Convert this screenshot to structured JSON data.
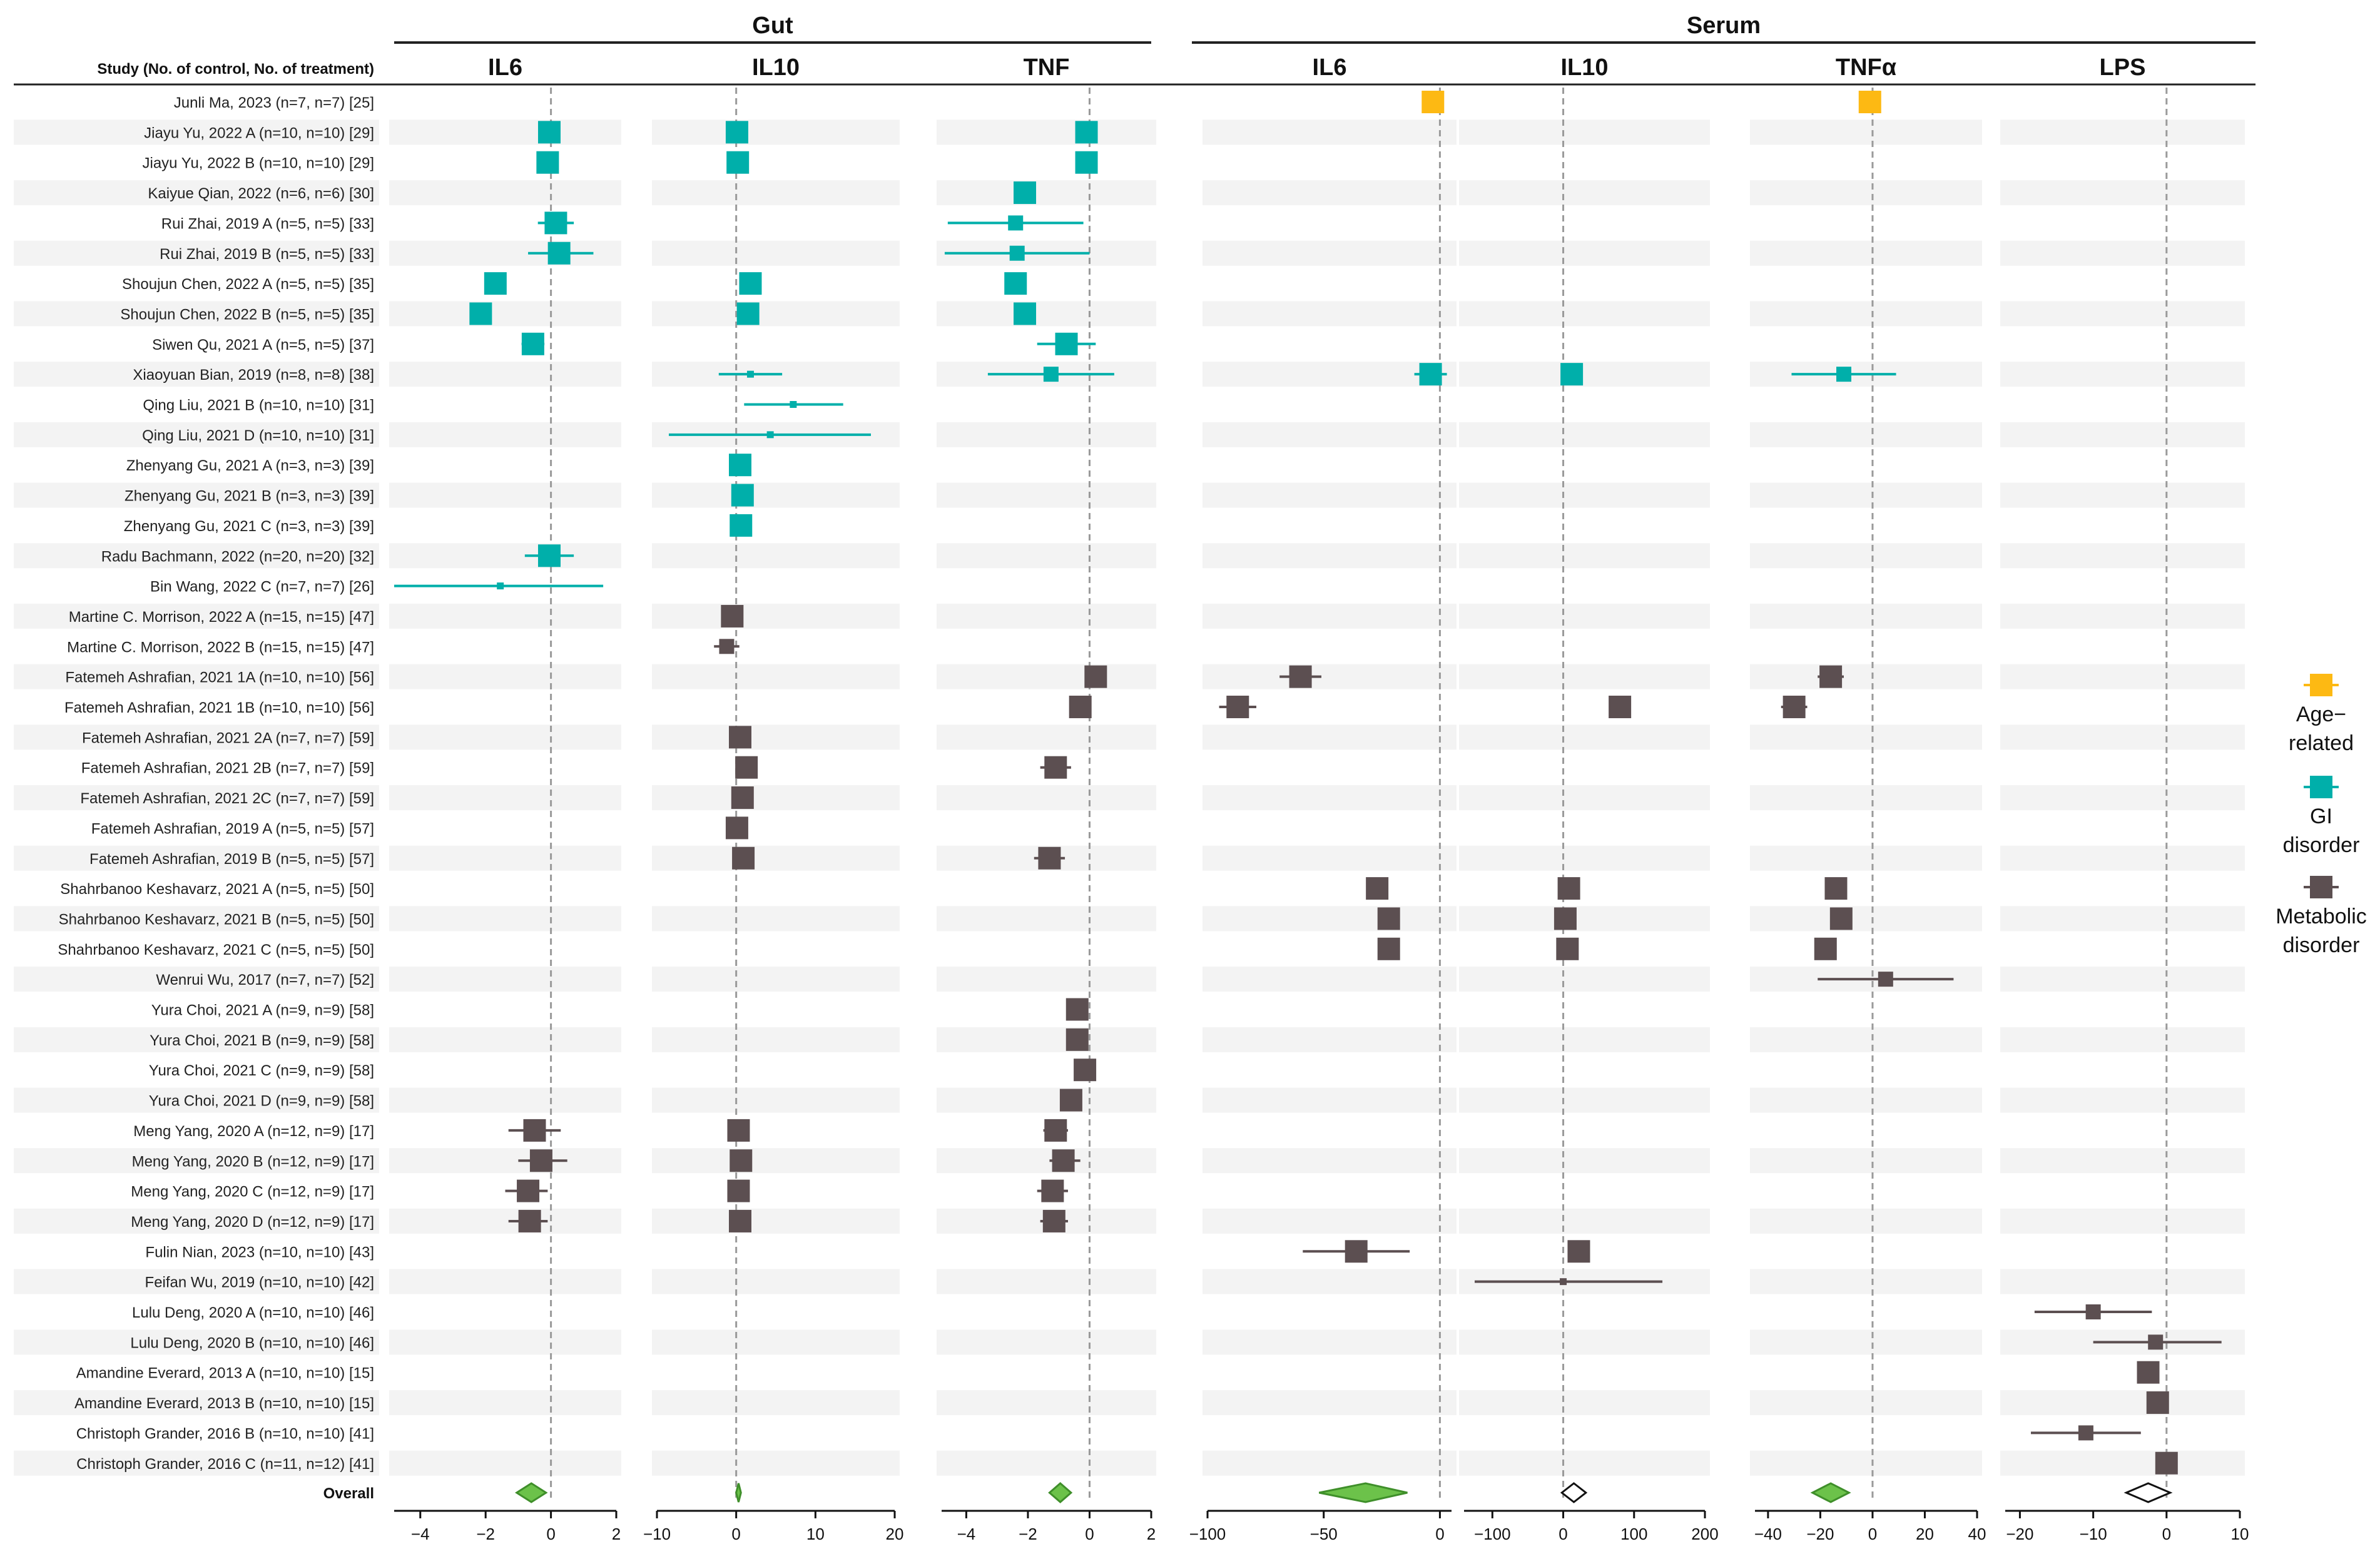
{
  "chart_data": {
    "type": "forest",
    "header": {
      "study_col": "Study (No. of control, No. of treatment)",
      "groups": [
        {
          "label": "Gut",
          "panels": [
            0,
            1,
            2
          ]
        },
        {
          "label": "Serum",
          "panels": [
            3,
            4,
            5,
            6
          ]
        }
      ]
    },
    "panels": [
      {
        "title": "IL6",
        "xlim": [
          -4.8,
          2.0
        ],
        "ticks": [
          -4,
          -2,
          0,
          2
        ]
      },
      {
        "title": "IL10",
        "xlim": [
          -10,
          20
        ],
        "ticks": [
          -10,
          0,
          10,
          20
        ]
      },
      {
        "title": "TNF",
        "xlim": [
          -4.8,
          2.0
        ],
        "ticks": [
          -4,
          -2,
          0,
          2
        ]
      },
      {
        "title": "IL6",
        "xlim": [
          -100,
          5
        ],
        "ticks": [
          -100,
          -50,
          0
        ]
      },
      {
        "title": "IL10",
        "xlim": [
          -140,
          200
        ],
        "ticks": [
          -100,
          0,
          100,
          200
        ]
      },
      {
        "title": "TNFα",
        "xlim": [
          -45,
          40
        ],
        "ticks": [
          -40,
          -20,
          0,
          20,
          40
        ]
      },
      {
        "title": "LPS",
        "xlim": [
          -22,
          10
        ],
        "ticks": [
          -20,
          -10,
          0,
          10
        ]
      }
    ],
    "legend": [
      {
        "name": "Age-related",
        "lines": [
          "Age−",
          "related"
        ],
        "color": "#FDB913"
      },
      {
        "name": "GI disorder",
        "lines": [
          "GI",
          "disorder"
        ],
        "color": "#00AFAA"
      },
      {
        "name": "Metabolic disorder",
        "lines": [
          "Metabolic",
          "disorder"
        ],
        "color": "#5C4F51"
      }
    ],
    "overall_label": "Overall",
    "studies": [
      {
        "label": "Junli Ma, 2023 (n=7, n=7) [25]",
        "group": 0
      },
      {
        "label": "Jiayu Yu, 2022 A (n=10, n=10) [29]",
        "group": 1
      },
      {
        "label": "Jiayu Yu, 2022 B (n=10, n=10) [29]",
        "group": 1
      },
      {
        "label": "Kaiyue Qian, 2022 (n=6, n=6) [30]",
        "group": 1
      },
      {
        "label": "Rui Zhai, 2019 A (n=5, n=5) [33]",
        "group": 1
      },
      {
        "label": "Rui Zhai, 2019 B (n=5, n=5) [33]",
        "group": 1
      },
      {
        "label": "Shoujun Chen, 2022 A (n=5, n=5) [35]",
        "group": 1
      },
      {
        "label": "Shoujun Chen, 2022 B (n=5, n=5) [35]",
        "group": 1
      },
      {
        "label": "Siwen Qu, 2021 A (n=5, n=5) [37]",
        "group": 1
      },
      {
        "label": "Xiaoyuan Bian, 2019 (n=8, n=8) [38]",
        "group": 1
      },
      {
        "label": "Qing Liu, 2021 B (n=10, n=10) [31]",
        "group": 1
      },
      {
        "label": "Qing Liu, 2021 D (n=10, n=10) [31]",
        "group": 1
      },
      {
        "label": "Zhenyang Gu, 2021 A (n=3, n=3) [39]",
        "group": 1
      },
      {
        "label": "Zhenyang Gu, 2021 B (n=3, n=3) [39]",
        "group": 1
      },
      {
        "label": "Zhenyang Gu, 2021 C (n=3, n=3) [39]",
        "group": 1
      },
      {
        "label": "Radu Bachmann, 2022 (n=20, n=20) [32]",
        "group": 1
      },
      {
        "label": "Bin Wang, 2022 C (n=7, n=7) [26]",
        "group": 1
      },
      {
        "label": "Martine C. Morrison, 2022 A (n=15, n=15) [47]",
        "group": 2
      },
      {
        "label": "Martine C. Morrison, 2022 B (n=15, n=15) [47]",
        "group": 2
      },
      {
        "label": "Fatemeh Ashrafian, 2021 1A (n=10, n=10) [56]",
        "group": 2
      },
      {
        "label": "Fatemeh Ashrafian, 2021 1B (n=10, n=10) [56]",
        "group": 2
      },
      {
        "label": "Fatemeh Ashrafian, 2021 2A (n=7, n=7) [59]",
        "group": 2
      },
      {
        "label": "Fatemeh Ashrafian, 2021 2B (n=7, n=7) [59]",
        "group": 2
      },
      {
        "label": "Fatemeh Ashrafian, 2021 2C (n=7, n=7) [59]",
        "group": 2
      },
      {
        "label": "Fatemeh Ashrafian, 2019 A (n=5, n=5) [57]",
        "group": 2
      },
      {
        "label": "Fatemeh Ashrafian, 2019 B (n=5, n=5) [57]",
        "group": 2
      },
      {
        "label": "Shahrbanoo Keshavarz, 2021 A (n=5, n=5) [50]",
        "group": 2
      },
      {
        "label": "Shahrbanoo Keshavarz, 2021 B (n=5, n=5) [50]",
        "group": 2
      },
      {
        "label": "Shahrbanoo Keshavarz, 2021 C (n=5, n=5) [50]",
        "group": 2
      },
      {
        "label": "Wenrui Wu, 2017 (n=7, n=7) [52]",
        "group": 2
      },
      {
        "label": "Yura Choi, 2021 A (n=9, n=9) [58]",
        "group": 2
      },
      {
        "label": "Yura Choi, 2021 B (n=9, n=9) [58]",
        "group": 2
      },
      {
        "label": "Yura Choi, 2021 C (n=9, n=9) [58]",
        "group": 2
      },
      {
        "label": "Yura Choi, 2021 D (n=9, n=9) [58]",
        "group": 2
      },
      {
        "label": "Meng Yang, 2020 A (n=12, n=9) [17]",
        "group": 2
      },
      {
        "label": "Meng Yang, 2020 B (n=12, n=9) [17]",
        "group": 2
      },
      {
        "label": "Meng Yang, 2020 C (n=12, n=9) [17]",
        "group": 2
      },
      {
        "label": "Meng Yang, 2020 D (n=12, n=9) [17]",
        "group": 2
      },
      {
        "label": "Fulin Nian, 2023 (n=10, n=10) [43]",
        "group": 2
      },
      {
        "label": "Feifan Wu, 2019 (n=10, n=10) [42]",
        "group": 2
      },
      {
        "label": "Lulu Deng, 2020 A (n=10, n=10) [46]",
        "group": 2
      },
      {
        "label": "Lulu Deng, 2020 B (n=10, n=10) [46]",
        "group": 2
      },
      {
        "label": "Amandine Everard, 2013 A (n=10, n=10) [15]",
        "group": 2
      },
      {
        "label": "Amandine Everard, 2013 B (n=10, n=10) [15]",
        "group": 2
      },
      {
        "label": "Christoph Grander, 2016 B (n=10, n=10) [41]",
        "group": 2
      },
      {
        "label": "Christoph Grander, 2016 C (n=11, n=12) [41]",
        "group": 2
      }
    ],
    "estimates": [
      {
        "panel": 3,
        "row": 0,
        "est": -3,
        "lo": -3,
        "hi": -3,
        "w": 3
      },
      {
        "panel": 5,
        "row": 0,
        "est": -1,
        "lo": -1,
        "hi": -1,
        "w": 3
      },
      {
        "panel": 0,
        "row": 1,
        "est": -0.05,
        "lo": -0.05,
        "hi": -0.05,
        "w": 3
      },
      {
        "panel": 1,
        "row": 1,
        "est": 0.1,
        "lo": 0.1,
        "hi": 0.1,
        "w": 3
      },
      {
        "panel": 2,
        "row": 1,
        "est": -0.1,
        "lo": -0.1,
        "hi": -0.1,
        "w": 3
      },
      {
        "panel": 0,
        "row": 2,
        "est": -0.1,
        "lo": -0.1,
        "hi": -0.1,
        "w": 3
      },
      {
        "panel": 1,
        "row": 2,
        "est": 0.2,
        "lo": 0.2,
        "hi": 0.2,
        "w": 3
      },
      {
        "panel": 2,
        "row": 2,
        "est": -0.1,
        "lo": -0.1,
        "hi": -0.1,
        "w": 3
      },
      {
        "panel": 2,
        "row": 3,
        "est": -2.1,
        "lo": -2.1,
        "hi": -2.1,
        "w": 3
      },
      {
        "panel": 0,
        "row": 4,
        "est": 0.15,
        "lo": -0.4,
        "hi": 0.7,
        "w": 3
      },
      {
        "panel": 2,
        "row": 4,
        "est": -2.4,
        "lo": -4.6,
        "hi": -0.2,
        "w": 2
      },
      {
        "panel": 0,
        "row": 5,
        "est": 0.25,
        "lo": -0.7,
        "hi": 1.3,
        "w": 3
      },
      {
        "panel": 2,
        "row": 5,
        "est": -2.35,
        "lo": -4.7,
        "hi": 0.0,
        "w": 2
      },
      {
        "panel": 0,
        "row": 6,
        "est": -1.7,
        "lo": -1.7,
        "hi": -1.7,
        "w": 3
      },
      {
        "panel": 1,
        "row": 6,
        "est": 1.8,
        "lo": 1.8,
        "hi": 1.8,
        "w": 3
      },
      {
        "panel": 2,
        "row": 6,
        "est": -2.4,
        "lo": -2.4,
        "hi": -2.4,
        "w": 3
      },
      {
        "panel": 0,
        "row": 7,
        "est": -2.15,
        "lo": -2.15,
        "hi": -2.15,
        "w": 3
      },
      {
        "panel": 1,
        "row": 7,
        "est": 1.5,
        "lo": 1.5,
        "hi": 1.5,
        "w": 3
      },
      {
        "panel": 2,
        "row": 7,
        "est": -2.1,
        "lo": -2.1,
        "hi": -2.1,
        "w": 3
      },
      {
        "panel": 0,
        "row": 8,
        "est": -0.55,
        "lo": -0.9,
        "hi": -0.2,
        "w": 3
      },
      {
        "panel": 2,
        "row": 8,
        "est": -0.75,
        "lo": -1.7,
        "hi": 0.2,
        "w": 3
      },
      {
        "panel": 1,
        "row": 9,
        "est": 1.8,
        "lo": -2.2,
        "hi": 5.8,
        "w": 1
      },
      {
        "panel": 2,
        "row": 9,
        "est": -1.25,
        "lo": -3.3,
        "hi": 0.8,
        "w": 2
      },
      {
        "panel": 3,
        "row": 9,
        "est": -4,
        "lo": -11,
        "hi": 3,
        "w": 3
      },
      {
        "panel": 4,
        "row": 9,
        "est": 12,
        "lo": 12,
        "hi": 12,
        "w": 3
      },
      {
        "panel": 5,
        "row": 9,
        "est": -11,
        "lo": -31,
        "hi": 9,
        "w": 2
      },
      {
        "panel": 1,
        "row": 10,
        "est": 7.2,
        "lo": 1.0,
        "hi": 13.5,
        "w": 1
      },
      {
        "panel": 1,
        "row": 11,
        "est": 4.3,
        "lo": -8.5,
        "hi": 17.0,
        "w": 1
      },
      {
        "panel": 1,
        "row": 12,
        "est": 0.5,
        "lo": 0.5,
        "hi": 0.5,
        "w": 3
      },
      {
        "panel": 1,
        "row": 13,
        "est": 0.8,
        "lo": 0.8,
        "hi": 0.8,
        "w": 3
      },
      {
        "panel": 1,
        "row": 14,
        "est": 0.6,
        "lo": 0.6,
        "hi": 0.6,
        "w": 3
      },
      {
        "panel": 0,
        "row": 15,
        "est": -0.05,
        "lo": -0.8,
        "hi": 0.7,
        "w": 3
      },
      {
        "panel": 0,
        "row": 16,
        "est": -1.55,
        "lo": -4.8,
        "hi": 1.6,
        "w": 1
      },
      {
        "panel": 1,
        "row": 17,
        "est": -0.5,
        "lo": -0.5,
        "hi": -0.5,
        "w": 3
      },
      {
        "panel": 1,
        "row": 18,
        "est": -1.2,
        "lo": -2.8,
        "hi": 0.4,
        "w": 2
      },
      {
        "panel": 2,
        "row": 19,
        "est": 0.2,
        "lo": 0.2,
        "hi": 0.2,
        "w": 3
      },
      {
        "panel": 3,
        "row": 19,
        "est": -60,
        "lo": -69,
        "hi": -51,
        "w": 3
      },
      {
        "panel": 5,
        "row": 19,
        "est": -16,
        "lo": -21,
        "hi": -11,
        "w": 3
      },
      {
        "panel": 2,
        "row": 20,
        "est": -0.3,
        "lo": -0.3,
        "hi": -0.3,
        "w": 3
      },
      {
        "panel": 3,
        "row": 20,
        "est": -87,
        "lo": -95,
        "hi": -79,
        "w": 3
      },
      {
        "panel": 4,
        "row": 20,
        "est": 80,
        "lo": 65,
        "hi": 95,
        "w": 3
      },
      {
        "panel": 5,
        "row": 20,
        "est": -30,
        "lo": -35,
        "hi": -25,
        "w": 3
      },
      {
        "panel": 1,
        "row": 21,
        "est": 0.5,
        "lo": 0.5,
        "hi": 0.5,
        "w": 3
      },
      {
        "panel": 1,
        "row": 22,
        "est": 1.3,
        "lo": 1.3,
        "hi": 1.3,
        "w": 3
      },
      {
        "panel": 2,
        "row": 22,
        "est": -1.1,
        "lo": -1.6,
        "hi": -0.6,
        "w": 3
      },
      {
        "panel": 1,
        "row": 23,
        "est": 0.8,
        "lo": 0.8,
        "hi": 0.8,
        "w": 3
      },
      {
        "panel": 1,
        "row": 24,
        "est": 0.1,
        "lo": 0.1,
        "hi": 0.1,
        "w": 3
      },
      {
        "panel": 1,
        "row": 25,
        "est": 0.9,
        "lo": 0.9,
        "hi": 0.9,
        "w": 3
      },
      {
        "panel": 2,
        "row": 25,
        "est": -1.3,
        "lo": -1.8,
        "hi": -0.8,
        "w": 3
      },
      {
        "panel": 3,
        "row": 26,
        "est": -27,
        "lo": -27,
        "hi": -27,
        "w": 3
      },
      {
        "panel": 4,
        "row": 26,
        "est": 8,
        "lo": 8,
        "hi": 8,
        "w": 3
      },
      {
        "panel": 5,
        "row": 26,
        "est": -14,
        "lo": -14,
        "hi": -14,
        "w": 3
      },
      {
        "panel": 3,
        "row": 27,
        "est": -22,
        "lo": -22,
        "hi": -22,
        "w": 3
      },
      {
        "panel": 4,
        "row": 27,
        "est": 3,
        "lo": 3,
        "hi": 3,
        "w": 3
      },
      {
        "panel": 5,
        "row": 27,
        "est": -12,
        "lo": -12,
        "hi": -12,
        "w": 3
      },
      {
        "panel": 3,
        "row": 28,
        "est": -22,
        "lo": -22,
        "hi": -22,
        "w": 3
      },
      {
        "panel": 4,
        "row": 28,
        "est": 6,
        "lo": 6,
        "hi": 6,
        "w": 3
      },
      {
        "panel": 5,
        "row": 28,
        "est": -18,
        "lo": -18,
        "hi": -18,
        "w": 3
      },
      {
        "panel": 5,
        "row": 29,
        "est": 5,
        "lo": -21,
        "hi": 31,
        "w": 2
      },
      {
        "panel": 2,
        "row": 30,
        "est": -0.4,
        "lo": -0.4,
        "hi": -0.4,
        "w": 3
      },
      {
        "panel": 2,
        "row": 31,
        "est": -0.4,
        "lo": -0.4,
        "hi": -0.4,
        "w": 3
      },
      {
        "panel": 2,
        "row": 32,
        "est": -0.15,
        "lo": -0.15,
        "hi": -0.15,
        "w": 3
      },
      {
        "panel": 2,
        "row": 33,
        "est": -0.6,
        "lo": -0.6,
        "hi": -0.6,
        "w": 3
      },
      {
        "panel": 0,
        "row": 34,
        "est": -0.5,
        "lo": -1.3,
        "hi": 0.3,
        "w": 3
      },
      {
        "panel": 1,
        "row": 34,
        "est": 0.3,
        "lo": 0.3,
        "hi": 0.3,
        "w": 3
      },
      {
        "panel": 2,
        "row": 34,
        "est": -1.1,
        "lo": -1.5,
        "hi": -0.7,
        "w": 3
      },
      {
        "panel": 0,
        "row": 35,
        "est": -0.3,
        "lo": -1.0,
        "hi": 0.5,
        "w": 3
      },
      {
        "panel": 1,
        "row": 35,
        "est": 0.6,
        "lo": 0.6,
        "hi": 0.6,
        "w": 3
      },
      {
        "panel": 2,
        "row": 35,
        "est": -0.85,
        "lo": -1.3,
        "hi": -0.3,
        "w": 3
      },
      {
        "panel": 0,
        "row": 36,
        "est": -0.7,
        "lo": -1.4,
        "hi": -0.1,
        "w": 3
      },
      {
        "panel": 1,
        "row": 36,
        "est": 0.3,
        "lo": 0.3,
        "hi": 0.3,
        "w": 3
      },
      {
        "panel": 2,
        "row": 36,
        "est": -1.2,
        "lo": -1.7,
        "hi": -0.7,
        "w": 3
      },
      {
        "panel": 0,
        "row": 37,
        "est": -0.65,
        "lo": -1.3,
        "hi": -0.1,
        "w": 3
      },
      {
        "panel": 1,
        "row": 37,
        "est": 0.5,
        "lo": 0.5,
        "hi": 0.5,
        "w": 3
      },
      {
        "panel": 2,
        "row": 37,
        "est": -1.15,
        "lo": -1.6,
        "hi": -0.7,
        "w": 3
      },
      {
        "panel": 3,
        "row": 38,
        "est": -36,
        "lo": -59,
        "hi": -13,
        "w": 3
      },
      {
        "panel": 4,
        "row": 38,
        "est": 22,
        "lo": 22,
        "hi": 22,
        "w": 3
      },
      {
        "panel": 4,
        "row": 39,
        "est": 0,
        "lo": -125,
        "hi": 140,
        "w": 1
      },
      {
        "panel": 6,
        "row": 40,
        "est": -10,
        "lo": -18,
        "hi": -2,
        "w": 2
      },
      {
        "panel": 6,
        "row": 41,
        "est": -1.5,
        "lo": -10,
        "hi": 7.5,
        "w": 2
      },
      {
        "panel": 6,
        "row": 42,
        "est": -2.5,
        "lo": -4,
        "hi": -1,
        "w": 3
      },
      {
        "panel": 6,
        "row": 43,
        "est": -1.2,
        "lo": -2.7,
        "hi": 0.3,
        "w": 3
      },
      {
        "panel": 6,
        "row": 44,
        "est": -11,
        "lo": -18.5,
        "hi": -3.5,
        "w": 2
      },
      {
        "panel": 6,
        "row": 45,
        "est": 0,
        "lo": 0,
        "hi": 0,
        "w": 3
      }
    ],
    "overall": [
      {
        "panel": 0,
        "est": -0.6,
        "lo": -1.05,
        "hi": -0.15,
        "filled": true
      },
      {
        "panel": 1,
        "est": 0.3,
        "lo": 0.0,
        "hi": 0.6,
        "filled": true
      },
      {
        "panel": 2,
        "est": -0.95,
        "lo": -1.3,
        "hi": -0.6,
        "filled": true
      },
      {
        "panel": 3,
        "est": -32,
        "lo": -52,
        "hi": -14,
        "filled": true
      },
      {
        "panel": 4,
        "est": 15,
        "lo": -2,
        "hi": 32,
        "filled": false
      },
      {
        "panel": 5,
        "est": -16,
        "lo": -23,
        "hi": -9,
        "filled": true
      },
      {
        "panel": 6,
        "est": -2.5,
        "lo": -5.5,
        "hi": 0.5,
        "filled": false
      }
    ]
  }
}
